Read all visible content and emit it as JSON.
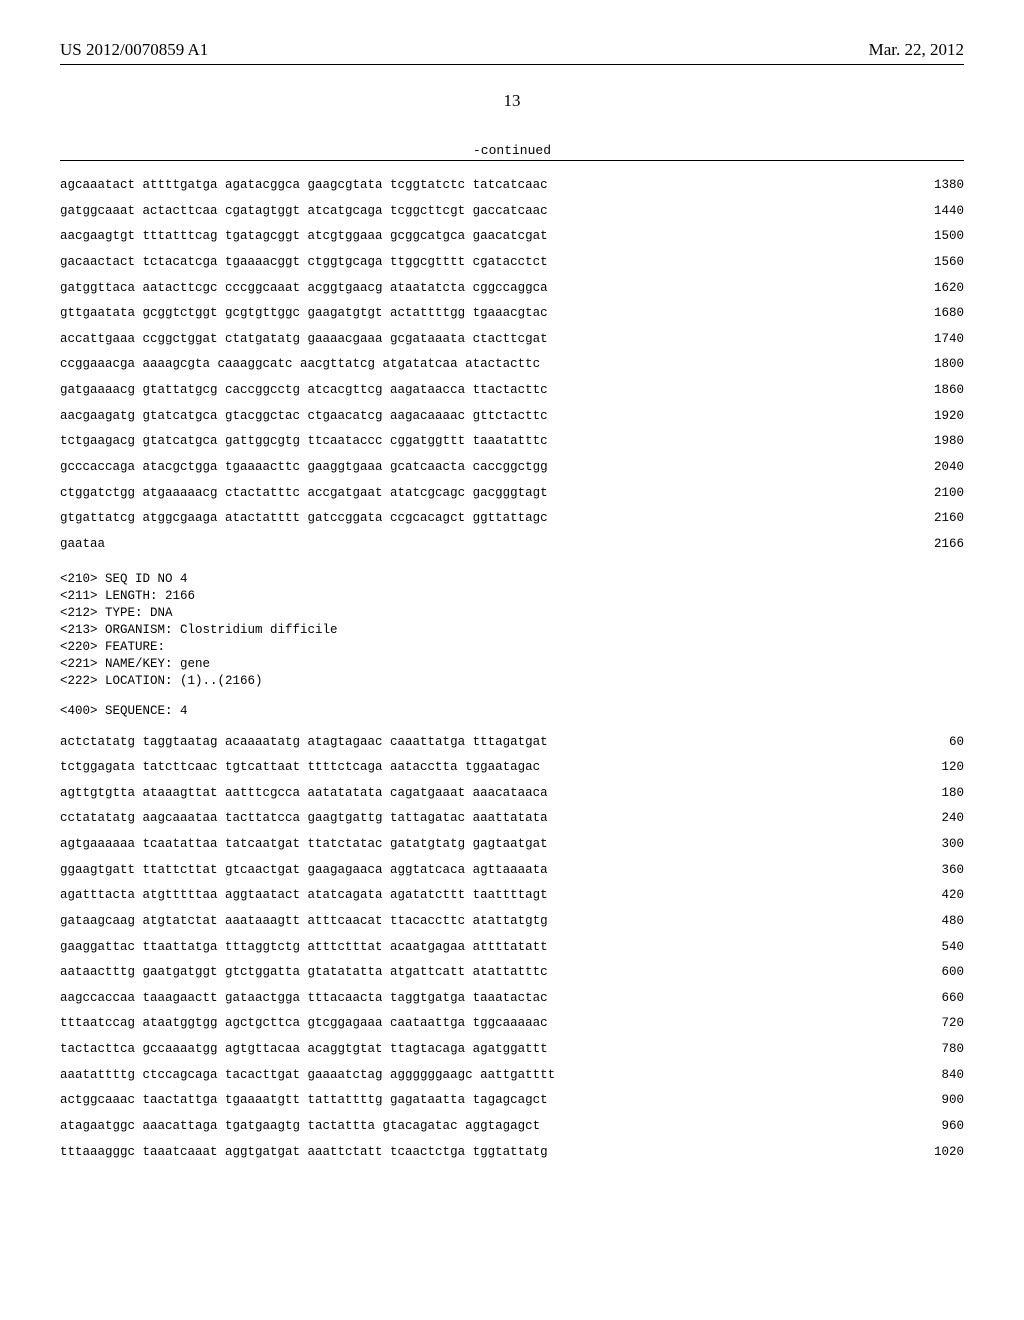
{
  "header": {
    "pub_number": "US 2012/0070859 A1",
    "pub_date": "Mar. 22, 2012"
  },
  "page_number": "13",
  "continued_label": "-continued",
  "sequence_block_1": [
    {
      "seq": "agcaaatact attttgatga agatacggca gaagcgtata tcggtatctc tatcatcaac",
      "num": "1380"
    },
    {
      "seq": "gatggcaaat actacttcaa cgatagtggt atcatgcaga tcggcttcgt gaccatcaac",
      "num": "1440"
    },
    {
      "seq": "aacgaagtgt tttatttcag tgatagcggt atcgtggaaa gcggcatgca gaacatcgat",
      "num": "1500"
    },
    {
      "seq": "gacaactact tctacatcga tgaaaacggt ctggtgcaga ttggcgtttt cgatacctct",
      "num": "1560"
    },
    {
      "seq": "gatggttaca aatacttcgc cccggcaaat acggtgaacg ataatatcta cggccaggca",
      "num": "1620"
    },
    {
      "seq": "gttgaatata gcggtctggt gcgtgttggc gaagatgtgt actattttgg tgaaacgtac",
      "num": "1680"
    },
    {
      "seq": "accattgaaa ccggctggat ctatgatatg gaaaacgaaa gcgataaata ctacttcgat",
      "num": "1740"
    },
    {
      "seq": "ccggaaacga aaaagcgta caaaggcatc aacgttatcg atgatatcaa atactacttc",
      "num": "1800"
    },
    {
      "seq": "gatgaaaacg gtattatgcg caccggcctg atcacgttcg aagataacca ttactacttc",
      "num": "1860"
    },
    {
      "seq": "aacgaagatg gtatcatgca gtacggctac ctgaacatcg aagacaaaac gttctacttc",
      "num": "1920"
    },
    {
      "seq": "tctgaagacg gtatcatgca gattggcgtg ttcaataccc cggatggttt taaatatttc",
      "num": "1980"
    },
    {
      "seq": "gcccaccaga atacgctgga tgaaaacttc gaaggtgaaa gcatcaacta caccggctgg",
      "num": "2040"
    },
    {
      "seq": "ctggatctgg atgaaaaacg ctactatttc accgatgaat atatcgcagc gacgggtagt",
      "num": "2100"
    },
    {
      "seq": "gtgattatcg atggcgaaga atactatttt gatccggata ccgcacagct ggttattagc",
      "num": "2160"
    },
    {
      "seq": "gaataa",
      "num": "2166"
    }
  ],
  "meta_block": "<210> SEQ ID NO 4\n<211> LENGTH: 2166\n<212> TYPE: DNA\n<213> ORGANISM: Clostridium difficile\n<220> FEATURE:\n<221> NAME/KEY: gene\n<222> LOCATION: (1)..(2166)",
  "seq_header_2": "<400> SEQUENCE: 4",
  "sequence_block_2": [
    {
      "seq": "actctatatg taggtaatag acaaaatatg atagtagaac caaattatga tttagatgat",
      "num": "60"
    },
    {
      "seq": "tctggagata tatcttcaac tgtcattaat ttttctcaga aatacctta tggaatagac",
      "num": "120"
    },
    {
      "seq": "agttgtgtta ataaagttat aatttcgcca aatatatata cagatgaaat aaacataaca",
      "num": "180"
    },
    {
      "seq": "cctatatatg aagcaaataa tacttatcca gaagtgattg tattagatac aaattatata",
      "num": "240"
    },
    {
      "seq": "agtgaaaaaa tcaatattaa tatcaatgat ttatctatac gatatgtatg gagtaatgat",
      "num": "300"
    },
    {
      "seq": "ggaagtgatt ttattcttat gtcaactgat gaagagaaca aggtatcaca agttaaaata",
      "num": "360"
    },
    {
      "seq": "agatttacta atgtttttaa aggtaatact atatcagata agatatcttt taattttagt",
      "num": "420"
    },
    {
      "seq": "gataagcaag atgtatctat aaataaagtt atttcaacat ttacaccttc atattatgtg",
      "num": "480"
    },
    {
      "seq": "gaaggattac ttaattatga tttaggtctg atttctttat acaatgagaa attttatatt",
      "num": "540"
    },
    {
      "seq": "aataactttg gaatgatggt gtctggatta gtatatatta atgattcatt atattatttc",
      "num": "600"
    },
    {
      "seq": "aagccaccaa taaagaactt gataactgga tttacaacta taggtgatga taaatactac",
      "num": "660"
    },
    {
      "seq": "tttaatccag ataatggtgg agctgcttca gtcggagaaa caataattga tggcaaaaac",
      "num": "720"
    },
    {
      "seq": "tactacttca gccaaaatgg agtgttacaa acaggtgtat ttagtacaga agatggattt",
      "num": "780"
    },
    {
      "seq": "aaatattttg ctccagcaga tacacttgat gaaaatctag aggggggaagc aattgatttt",
      "num": "840"
    },
    {
      "seq": "actggcaaac taactattga tgaaaatgtt tattattttg gagataatta tagagcagct",
      "num": "900"
    },
    {
      "seq": "atagaatggc aaacattaga tgatgaagtg tactattta gtacagatac aggtagagct",
      "num": "960"
    },
    {
      "seq": "tttaaagggc taaatcaaat aggtgatgat aaattctatt tcaactctga tggtattatg",
      "num": "1020"
    }
  ]
}
